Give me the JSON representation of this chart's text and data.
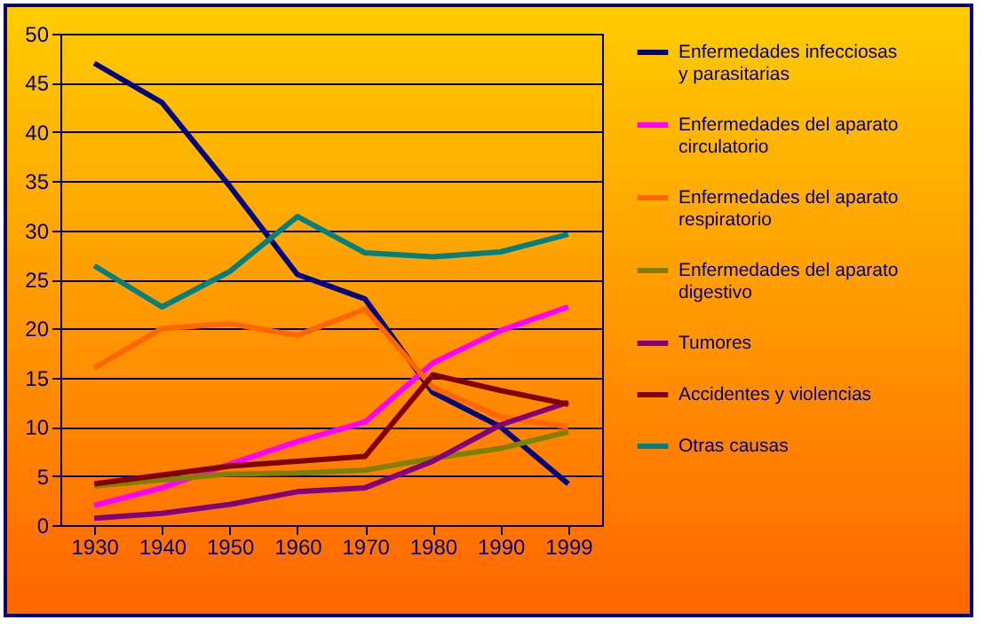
{
  "chart_data": {
    "type": "line",
    "categories": [
      "1930",
      "1940",
      "1950",
      "1960",
      "1970",
      "1980",
      "1990",
      "1999"
    ],
    "ylim": [
      0,
      50
    ],
    "yticks": [
      0,
      5,
      10,
      15,
      20,
      25,
      30,
      35,
      40,
      45,
      50
    ],
    "grid": "y",
    "legend": "right",
    "series": [
      {
        "name": "Enfermedades infecciosas y parasitarias",
        "color": "#000080",
        "values": [
          47,
          43,
          34.5,
          25.5,
          23,
          13.5,
          10,
          4.2
        ]
      },
      {
        "name": "Enfermedades del aparato circulatorio",
        "color": "#ff00ff",
        "values": [
          2,
          3.8,
          6.2,
          8.5,
          10.5,
          16.5,
          19.8,
          22.2
        ]
      },
      {
        "name": "Enfermedades del aparato respiratorio",
        "color": "#ff6600",
        "values": [
          16,
          20,
          20.5,
          19.3,
          22,
          14,
          11,
          10
        ]
      },
      {
        "name": "Enfermedades del aparato digestivo",
        "color": "#808000",
        "values": [
          4,
          4.6,
          5.2,
          5.3,
          5.6,
          6.8,
          7.8,
          9.5
        ]
      },
      {
        "name": "Tumores",
        "color": "#800080",
        "values": [
          0.7,
          1.2,
          2.1,
          3.4,
          3.8,
          6.5,
          10.2,
          12.5
        ]
      },
      {
        "name": "Accidentes y violencias",
        "color": "#800000",
        "values": [
          4.2,
          5.1,
          6,
          6.5,
          7,
          15.3,
          13.7,
          12.3
        ]
      },
      {
        "name": "Otras causas",
        "color": "#008080",
        "values": [
          26.4,
          22.2,
          25.8,
          31.4,
          27.7,
          27.3,
          27.8,
          29.6
        ]
      }
    ]
  }
}
